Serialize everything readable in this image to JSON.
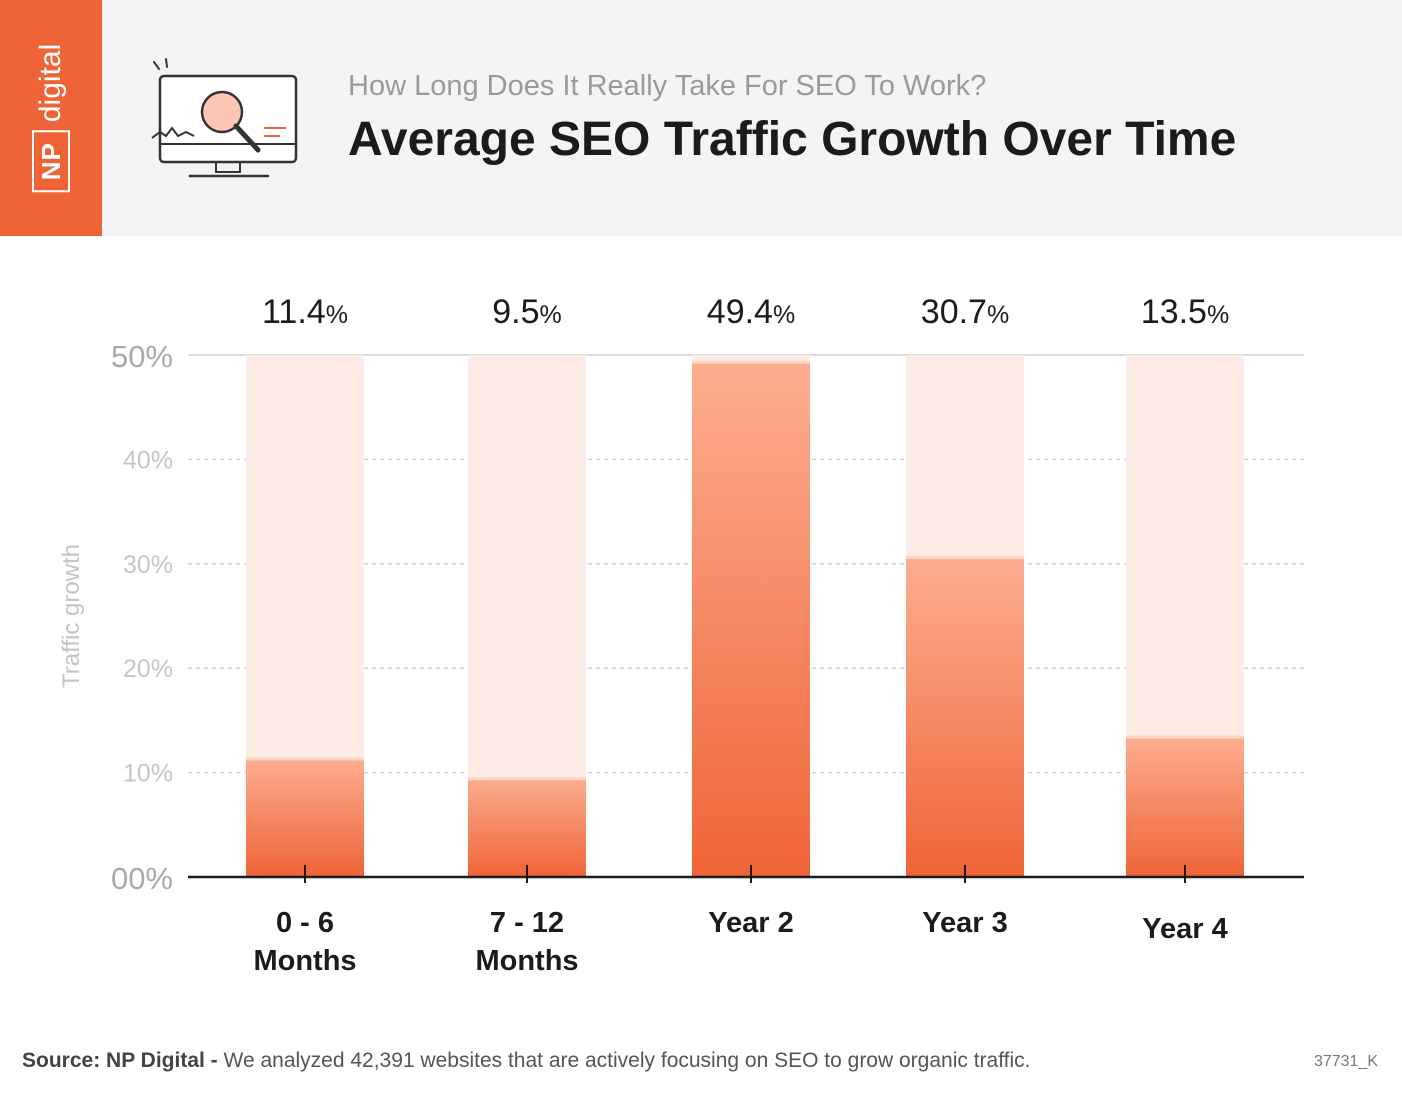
{
  "brand": {
    "np": "NP",
    "digital": "digital"
  },
  "header": {
    "subtitle": "How Long Does It Really Take For SEO To Work?",
    "title": "Average SEO Traffic Growth Over Time"
  },
  "chart_data": {
    "type": "bar",
    "categories": [
      [
        "0 - 6",
        "Months"
      ],
      [
        "7 - 12",
        "Months"
      ],
      [
        "Year 2"
      ],
      [
        "Year 3"
      ],
      [
        "Year 4"
      ]
    ],
    "values": [
      11.4,
      9.5,
      49.4,
      30.7,
      13.5
    ],
    "value_labels": [
      {
        "num": "11.4",
        "unit": "%"
      },
      {
        "num": "9.5",
        "unit": "%"
      },
      {
        "num": "49.4",
        "unit": "%"
      },
      {
        "num": "30.7",
        "unit": "%"
      },
      {
        "num": "13.5",
        "unit": "%"
      }
    ],
    "ylabel": "Traffic growth",
    "ylim": [
      0,
      50
    ],
    "yticks": [
      {
        "value": 0,
        "label": "00%"
      },
      {
        "value": 10,
        "label": "10%"
      },
      {
        "value": 20,
        "label": "20%"
      },
      {
        "value": 30,
        "label": "30%"
      },
      {
        "value": 40,
        "label": "40%"
      },
      {
        "value": 50,
        "label": "50%"
      }
    ],
    "grid": true,
    "colors": {
      "bar": "#ef6436",
      "bar_light": "#fcae90",
      "track": "#fdece6"
    }
  },
  "footer": {
    "source_label": "Source:",
    "source_name": "NP Digital -",
    "source_text": "We analyzed 42,391 websites that are actively focusing on SEO to grow organic traffic.",
    "code": "37731_K"
  }
}
